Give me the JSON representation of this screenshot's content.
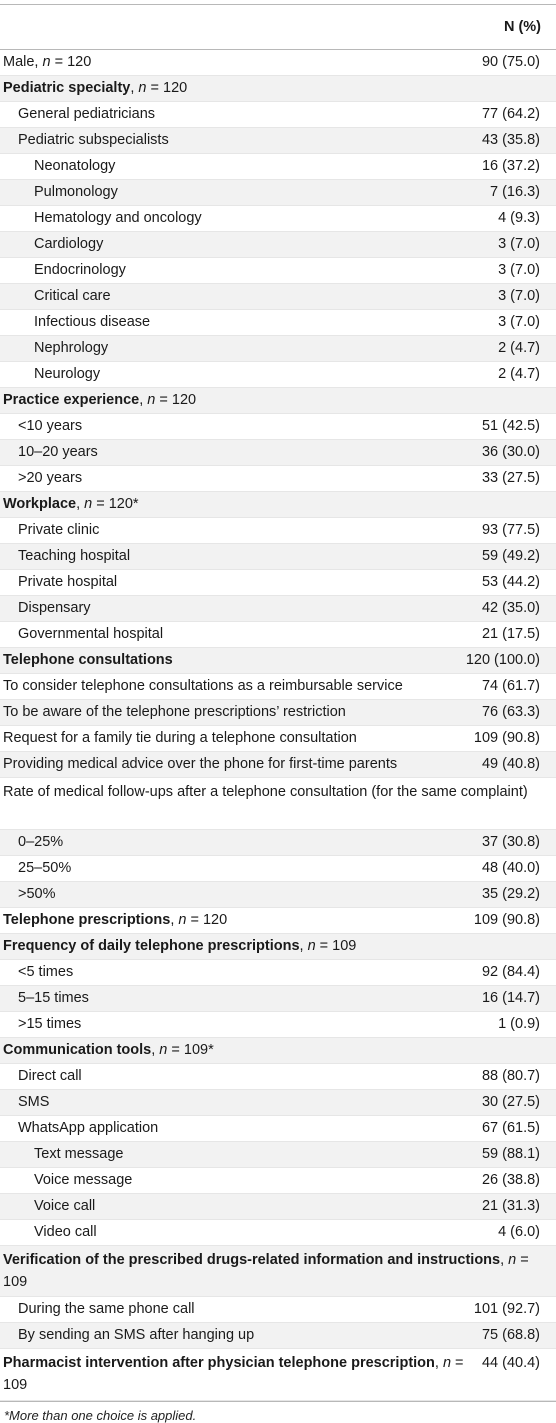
{
  "header": {
    "column": "N (%)"
  },
  "rows": [
    {
      "label": "Male, ",
      "n": "n",
      "suffix": " = 120",
      "value": "90 (75.0)",
      "level": 0,
      "bold": false
    },
    {
      "label": "Pediatric specialty",
      "n": "n",
      "suffix": " = 120",
      "value": "",
      "level": 0,
      "bold": true
    },
    {
      "label": "General pediatricians",
      "value": "77 (64.2)",
      "level": 1
    },
    {
      "label": "Pediatric subspecialists",
      "value": "43 (35.8)",
      "level": 1
    },
    {
      "label": "Neonatology",
      "value": "16 (37.2)",
      "level": 2
    },
    {
      "label": "Pulmonology",
      "value": "7 (16.3)",
      "level": 2
    },
    {
      "label": "Hematology and oncology",
      "value": "4 (9.3)",
      "level": 2
    },
    {
      "label": "Cardiology",
      "value": "3 (7.0)",
      "level": 2
    },
    {
      "label": "Endocrinology",
      "value": "3 (7.0)",
      "level": 2
    },
    {
      "label": "Critical care",
      "value": "3 (7.0)",
      "level": 2
    },
    {
      "label": "Infectious disease",
      "value": "3 (7.0)",
      "level": 2
    },
    {
      "label": "Nephrology",
      "value": "2 (4.7)",
      "level": 2
    },
    {
      "label": "Neurology",
      "value": "2 (4.7)",
      "level": 2
    },
    {
      "label": "Practice experience",
      "n": "n",
      "suffix": " = 120",
      "value": "",
      "level": 0,
      "bold": true
    },
    {
      "label": "<10 years",
      "value": "51 (42.5)",
      "level": 1
    },
    {
      "label": "10–20 years",
      "value": "36 (30.0)",
      "level": 1
    },
    {
      "label": ">20 years",
      "value": "33 (27.5)",
      "level": 1
    },
    {
      "label": "Workplace",
      "n": "n",
      "suffix": " = 120*",
      "value": "",
      "level": 0,
      "bold": true
    },
    {
      "label": "Private clinic",
      "value": "93 (77.5)",
      "level": 1
    },
    {
      "label": "Teaching hospital",
      "value": "59 (49.2)",
      "level": 1
    },
    {
      "label": "Private hospital",
      "value": "53 (44.2)",
      "level": 1
    },
    {
      "label": "Dispensary",
      "value": "42 (35.0)",
      "level": 1
    },
    {
      "label": "Governmental hospital",
      "value": "21 (17.5)",
      "level": 1
    },
    {
      "label": "Telephone consultations",
      "value": "120 (100.0)",
      "level": 0,
      "bold": true
    },
    {
      "label": "To consider telephone consultations as a reimbursable service",
      "value": "74 (61.7)",
      "level": 0
    },
    {
      "label": "To be aware of the telephone prescriptions’ restriction",
      "value": "76 (63.3)",
      "level": 0
    },
    {
      "label": "Request for a family tie during a telephone consultation",
      "value": "109 (90.8)",
      "level": 0
    },
    {
      "label": "Providing medical advice over the phone for first-time parents",
      "value": "49 (40.8)",
      "level": 0
    },
    {
      "label": "Rate of medical follow-ups after a telephone consultation (for the same complaint)",
      "value": "",
      "level": 0,
      "tall": true
    },
    {
      "label": "0–25%",
      "value": "37 (30.8)",
      "level": 1
    },
    {
      "label": "25–50%",
      "value": "48 (40.0)",
      "level": 1
    },
    {
      "label": ">50%",
      "value": "35 (29.2)",
      "level": 1
    },
    {
      "label": "Telephone prescriptions",
      "n": "n",
      "suffix": " = 120",
      "value": "109 (90.8)",
      "level": 0,
      "bold": true
    },
    {
      "label": "Frequency of daily telephone prescriptions",
      "n": "n",
      "suffix": " = 109",
      "value": "",
      "level": 0,
      "bold": true
    },
    {
      "label": "<5 times",
      "value": "92 (84.4)",
      "level": 1
    },
    {
      "label": "5–15 times",
      "value": "16 (14.7)",
      "level": 1
    },
    {
      "label": ">15 times",
      "value": "1 (0.9)",
      "level": 1
    },
    {
      "label": "Communication tools",
      "n": "n",
      "suffix": " = 109*",
      "value": "",
      "level": 0,
      "bold": true
    },
    {
      "label": "Direct call",
      "value": "88 (80.7)",
      "level": 1
    },
    {
      "label": "SMS",
      "value": "30 (27.5)",
      "level": 1
    },
    {
      "label": "WhatsApp application",
      "value": "67 (61.5)",
      "level": 1
    },
    {
      "label": "Text message",
      "value": "59 (88.1)",
      "level": 2
    },
    {
      "label": "Voice message",
      "value": "26 (38.8)",
      "level": 2
    },
    {
      "label": "Voice call",
      "value": "21 (31.3)",
      "level": 2
    },
    {
      "label": "Video call",
      "value": "4 (6.0)",
      "level": 2
    },
    {
      "label": "Verification of the prescribed drugs-related information and instructions",
      "n": "n",
      "suffix": " = 109",
      "value": "",
      "level": 0,
      "bold": true,
      "tall": true
    },
    {
      "label": "During the same phone call",
      "value": "101 (92.7)",
      "level": 1
    },
    {
      "label": "By sending an SMS after hanging up",
      "value": "75 (68.8)",
      "level": 1
    },
    {
      "label": "Pharmacist intervention after physician telephone prescription",
      "n": "n",
      "suffix": " = 109",
      "value": "44 (40.4)",
      "level": 0,
      "bold": true,
      "tall": true
    }
  ],
  "footnote": "*More than one choice is applied."
}
